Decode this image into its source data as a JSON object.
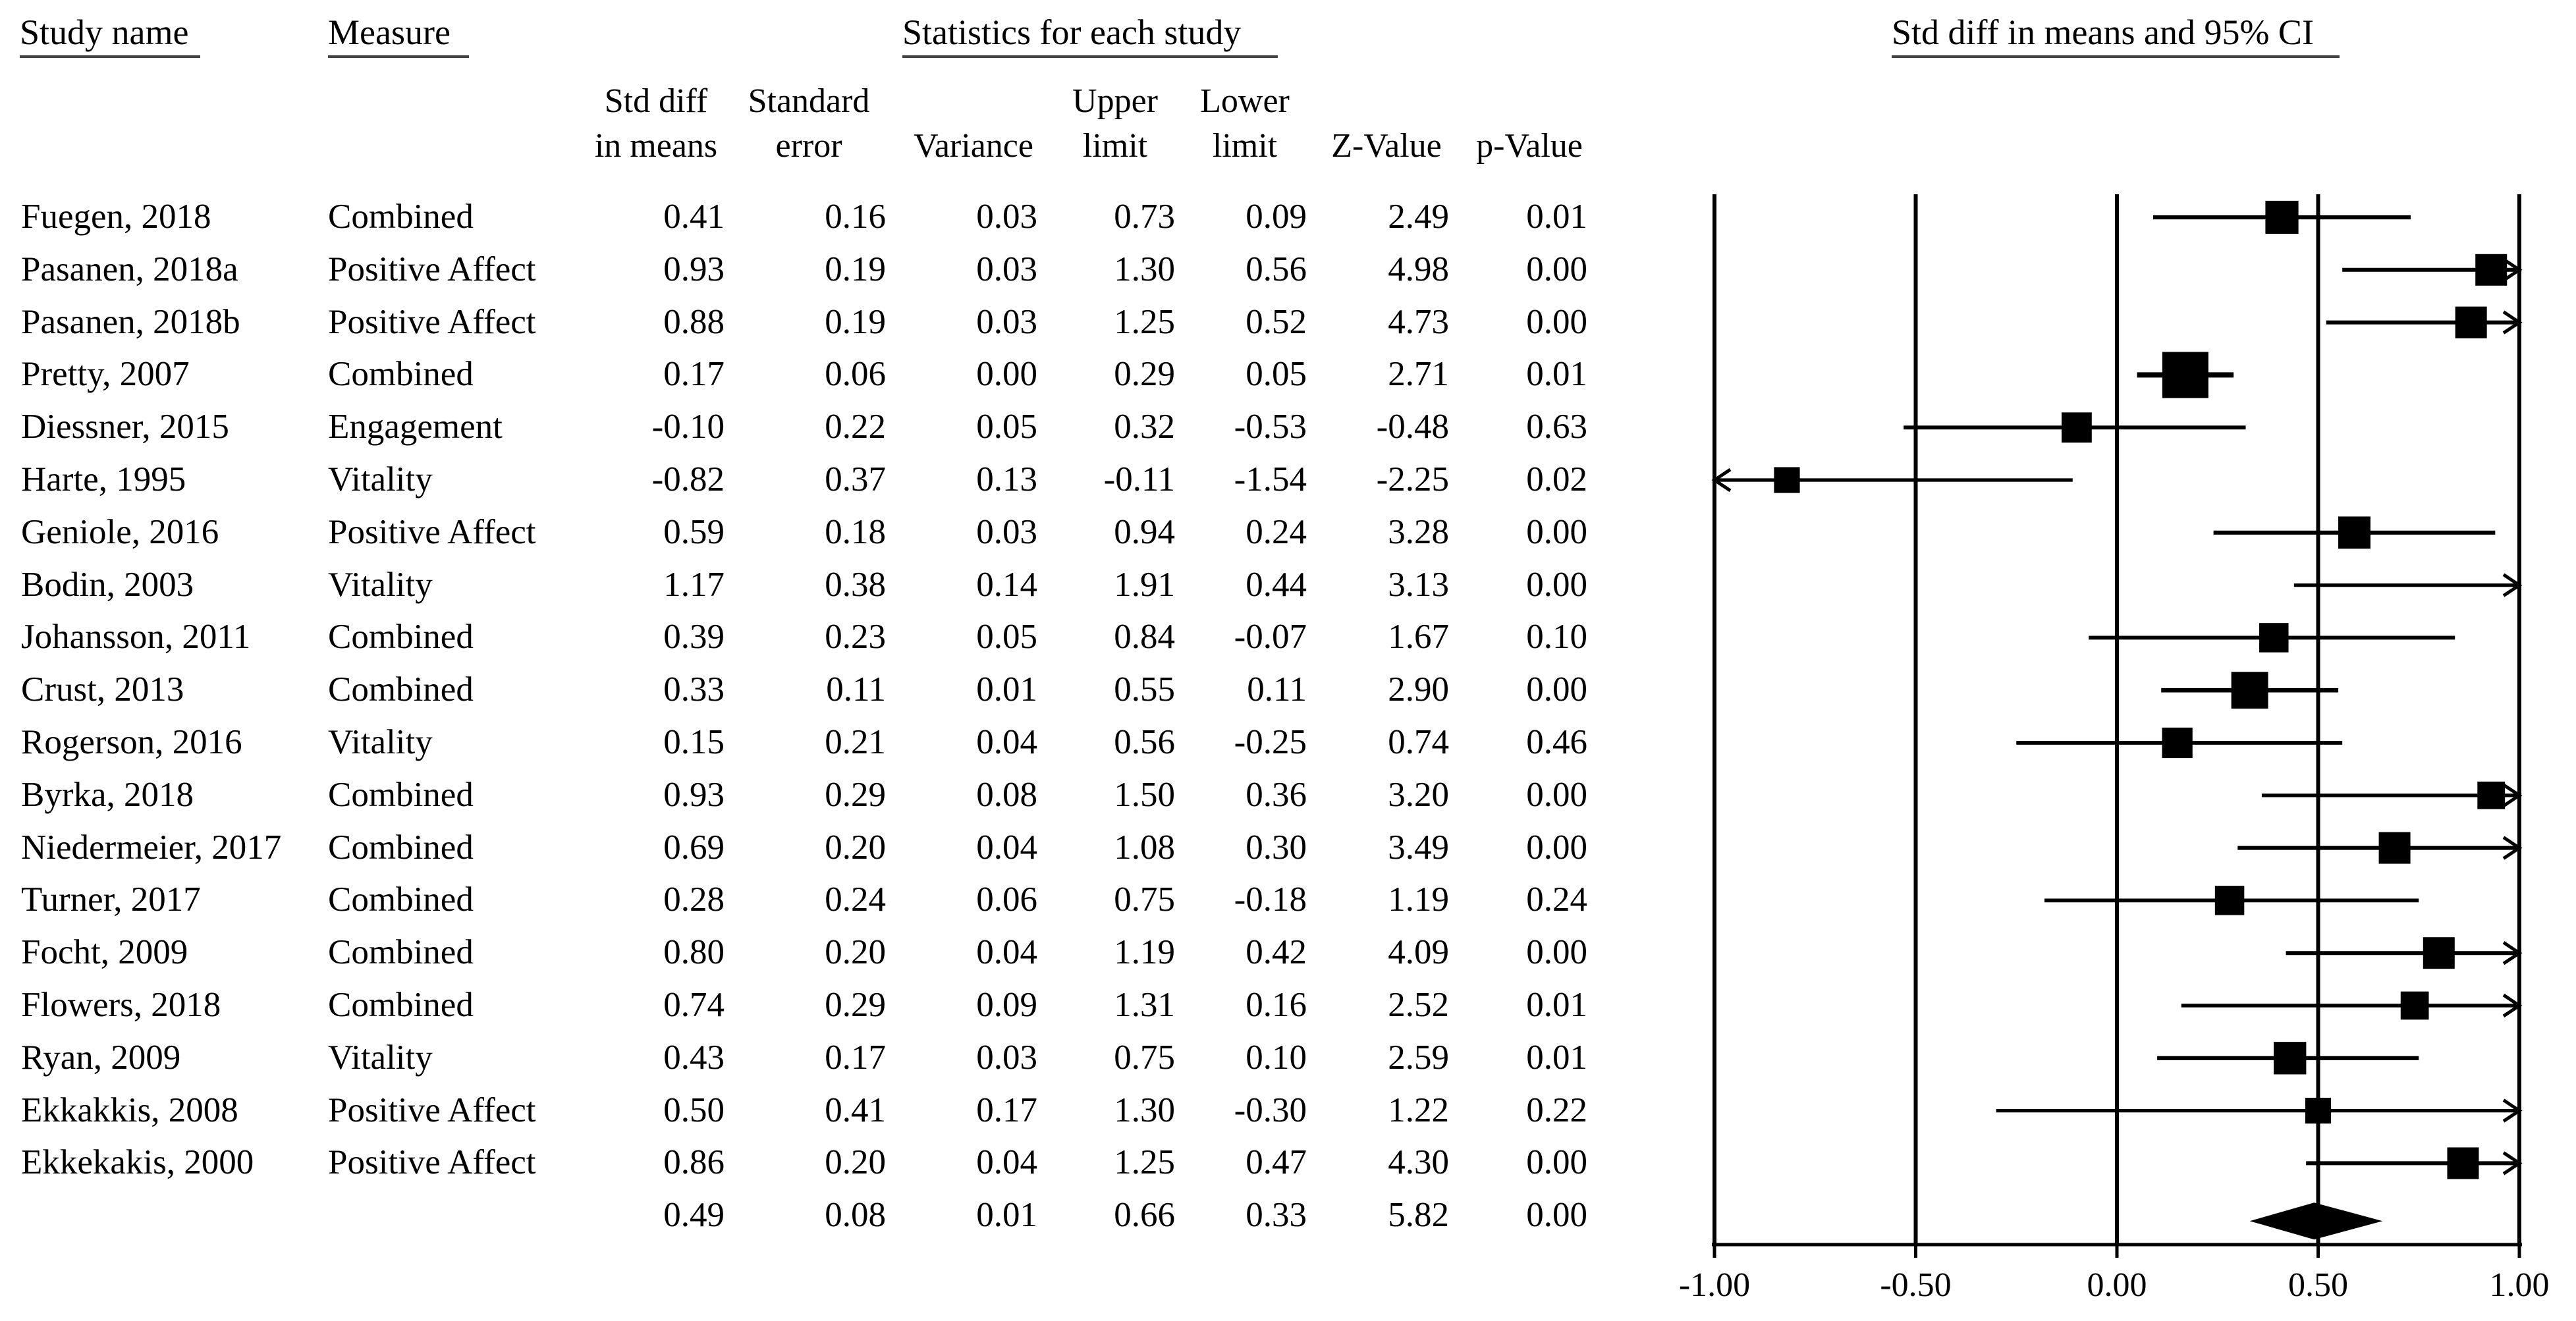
{
  "headers": {
    "study_name": "Study name",
    "measure": "Measure",
    "stats_group": "Statistics for each study",
    "plot_title": "Std diff in means and 95% CI"
  },
  "column_headers": [
    {
      "line1": "Std diff",
      "line2": "in means"
    },
    {
      "line1": "Standard",
      "line2": "error"
    },
    {
      "line1": "Variance",
      "line2": ""
    },
    {
      "line1": "Upper",
      "line2": "limit"
    },
    {
      "line1": "Lower",
      "line2": "limit"
    },
    {
      "line1": "Z-Value",
      "line2": ""
    },
    {
      "line1": "p-Value",
      "line2": ""
    }
  ],
  "rows": [
    {
      "study": "Fuegen, 2018",
      "measure": "Combined",
      "smd": "0.41",
      "se": "0.16",
      "variance": "0.03",
      "upper": "0.73",
      "lower": "0.09",
      "z": "2.49",
      "p": "0.01"
    },
    {
      "study": "Pasanen, 2018a",
      "measure": "Positive Affect",
      "smd": "0.93",
      "se": "0.19",
      "variance": "0.03",
      "upper": "1.30",
      "lower": "0.56",
      "z": "4.98",
      "p": "0.00"
    },
    {
      "study": "Pasanen, 2018b",
      "measure": "Positive Affect",
      "smd": "0.88",
      "se": "0.19",
      "variance": "0.03",
      "upper": "1.25",
      "lower": "0.52",
      "z": "4.73",
      "p": "0.00"
    },
    {
      "study": "Pretty, 2007",
      "measure": "Combined",
      "smd": "0.17",
      "se": "0.06",
      "variance": "0.00",
      "upper": "0.29",
      "lower": "0.05",
      "z": "2.71",
      "p": "0.01"
    },
    {
      "study": "Diessner, 2015",
      "measure": "Engagement",
      "smd": "-0.10",
      "se": "0.22",
      "variance": "0.05",
      "upper": "0.32",
      "lower": "-0.53",
      "z": "-0.48",
      "p": "0.63"
    },
    {
      "study": "Harte, 1995",
      "measure": "Vitality",
      "smd": "-0.82",
      "se": "0.37",
      "variance": "0.13",
      "upper": "-0.11",
      "lower": "-1.54",
      "z": "-2.25",
      "p": "0.02"
    },
    {
      "study": "Geniole, 2016",
      "measure": "Positive Affect",
      "smd": "0.59",
      "se": "0.18",
      "variance": "0.03",
      "upper": "0.94",
      "lower": "0.24",
      "z": "3.28",
      "p": "0.00"
    },
    {
      "study": "Bodin, 2003",
      "measure": "Vitality",
      "smd": "1.17",
      "se": "0.38",
      "variance": "0.14",
      "upper": "1.91",
      "lower": "0.44",
      "z": "3.13",
      "p": "0.00"
    },
    {
      "study": "Johansson, 2011",
      "measure": "Combined",
      "smd": "0.39",
      "se": "0.23",
      "variance": "0.05",
      "upper": "0.84",
      "lower": "-0.07",
      "z": "1.67",
      "p": "0.10"
    },
    {
      "study": "Crust, 2013",
      "measure": "Combined",
      "smd": "0.33",
      "se": "0.11",
      "variance": "0.01",
      "upper": "0.55",
      "lower": "0.11",
      "z": "2.90",
      "p": "0.00"
    },
    {
      "study": "Rogerson, 2016",
      "measure": "Vitality",
      "smd": "0.15",
      "se": "0.21",
      "variance": "0.04",
      "upper": "0.56",
      "lower": "-0.25",
      "z": "0.74",
      "p": "0.46"
    },
    {
      "study": "Byrka, 2018",
      "measure": "Combined",
      "smd": "0.93",
      "se": "0.29",
      "variance": "0.08",
      "upper": "1.50",
      "lower": "0.36",
      "z": "3.20",
      "p": "0.00"
    },
    {
      "study": "Niedermeier, 2017",
      "measure": "Combined",
      "smd": "0.69",
      "se": "0.20",
      "variance": "0.04",
      "upper": "1.08",
      "lower": "0.30",
      "z": "3.49",
      "p": "0.00"
    },
    {
      "study": "Turner, 2017",
      "measure": "Combined",
      "smd": "0.28",
      "se": "0.24",
      "variance": "0.06",
      "upper": "0.75",
      "lower": "-0.18",
      "z": "1.19",
      "p": "0.24"
    },
    {
      "study": "Focht, 2009",
      "measure": "Combined",
      "smd": "0.80",
      "se": "0.20",
      "variance": "0.04",
      "upper": "1.19",
      "lower": "0.42",
      "z": "4.09",
      "p": "0.00"
    },
    {
      "study": "Flowers, 2018",
      "measure": "Combined",
      "smd": "0.74",
      "se": "0.29",
      "variance": "0.09",
      "upper": "1.31",
      "lower": "0.16",
      "z": "2.52",
      "p": "0.01"
    },
    {
      "study": "Ryan, 2009",
      "measure": "Vitality",
      "smd": "0.43",
      "se": "0.17",
      "variance": "0.03",
      "upper": "0.75",
      "lower": "0.10",
      "z": "2.59",
      "p": "0.01"
    },
    {
      "study": "Ekkakkis, 2008",
      "measure": "Positive Affect",
      "smd": "0.50",
      "se": "0.41",
      "variance": "0.17",
      "upper": "1.30",
      "lower": "-0.30",
      "z": "1.22",
      "p": "0.22"
    },
    {
      "study": "Ekkekakis, 2000",
      "measure": "Positive Affect",
      "smd": "0.86",
      "se": "0.20",
      "variance": "0.04",
      "upper": "1.25",
      "lower": "0.47",
      "z": "4.30",
      "p": "0.00"
    }
  ],
  "summary": {
    "study": "",
    "measure": "",
    "smd": "0.49",
    "se": "0.08",
    "variance": "0.01",
    "upper": "0.66",
    "lower": "0.33",
    "z": "5.82",
    "p": "0.00"
  },
  "chart_data": {
    "type": "forest",
    "title": "Std diff in means and 95% CI",
    "xlim": [
      -1.0,
      1.0
    ],
    "x_ticks": [
      "-1.00",
      "-0.50",
      "0.00",
      "0.50",
      "1.00"
    ],
    "points": [
      {
        "label": "Fuegen, 2018",
        "estimate": 0.41,
        "lower": 0.09,
        "upper": 0.73,
        "weight": 0.55
      },
      {
        "label": "Pasanen, 2018a",
        "estimate": 0.93,
        "lower": 0.56,
        "upper": 1.3,
        "weight": 0.5
      },
      {
        "label": "Pasanen, 2018b",
        "estimate": 0.88,
        "lower": 0.52,
        "upper": 1.25,
        "weight": 0.5
      },
      {
        "label": "Pretty, 2007",
        "estimate": 0.17,
        "lower": 0.05,
        "upper": 0.29,
        "weight": 1.0
      },
      {
        "label": "Diessner, 2015",
        "estimate": -0.1,
        "lower": -0.53,
        "upper": 0.32,
        "weight": 0.45
      },
      {
        "label": "Harte, 1995",
        "estimate": -0.82,
        "lower": -1.54,
        "upper": -0.11,
        "weight": 0.3
      },
      {
        "label": "Geniole, 2016",
        "estimate": 0.59,
        "lower": 0.24,
        "upper": 0.94,
        "weight": 0.52
      },
      {
        "label": "Bodin, 2003",
        "estimate": 1.17,
        "lower": 0.44,
        "upper": 1.91,
        "weight": 0.3
      },
      {
        "label": "Johansson, 2011",
        "estimate": 0.39,
        "lower": -0.07,
        "upper": 0.84,
        "weight": 0.42
      },
      {
        "label": "Crust, 2013",
        "estimate": 0.33,
        "lower": 0.11,
        "upper": 0.55,
        "weight": 0.68
      },
      {
        "label": "Rogerson, 2016",
        "estimate": 0.15,
        "lower": -0.25,
        "upper": 0.56,
        "weight": 0.46
      },
      {
        "label": "Byrka, 2018",
        "estimate": 0.93,
        "lower": 0.36,
        "upper": 1.5,
        "weight": 0.36
      },
      {
        "label": "Niedermeier, 2017",
        "estimate": 0.69,
        "lower": 0.3,
        "upper": 1.08,
        "weight": 0.5
      },
      {
        "label": "Turner, 2017",
        "estimate": 0.28,
        "lower": -0.18,
        "upper": 0.75,
        "weight": 0.42
      },
      {
        "label": "Focht, 2009",
        "estimate": 0.8,
        "lower": 0.42,
        "upper": 1.19,
        "weight": 0.5
      },
      {
        "label": "Flowers, 2018",
        "estimate": 0.74,
        "lower": 0.16,
        "upper": 1.31,
        "weight": 0.38
      },
      {
        "label": "Ryan, 2009",
        "estimate": 0.43,
        "lower": 0.1,
        "upper": 0.75,
        "weight": 0.53
      },
      {
        "label": "Ekkakkis, 2008",
        "estimate": 0.5,
        "lower": -0.3,
        "upper": 1.3,
        "weight": 0.3
      },
      {
        "label": "Ekkekakis, 2000",
        "estimate": 0.86,
        "lower": 0.47,
        "upper": 1.25,
        "weight": 0.5
      }
    ],
    "summary": {
      "estimate": 0.49,
      "lower": 0.33,
      "upper": 0.66
    },
    "colors": {
      "marker": "#000000",
      "line": "#000000",
      "underline": "#444444"
    }
  }
}
